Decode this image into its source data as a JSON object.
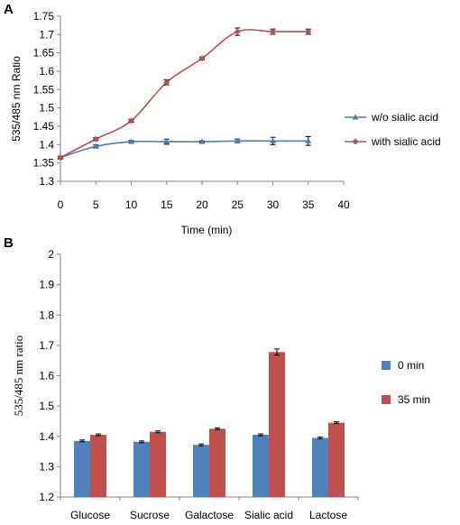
{
  "chart_data": [
    {
      "panel": "A",
      "type": "line",
      "xlabel": "Time  (min)",
      "ylabel": "535/485 nm Ratio",
      "xlim": [
        0,
        40
      ],
      "ylim": [
        1.3,
        1.75
      ],
      "xticks": [
        "0",
        "5",
        "10",
        "15",
        "20",
        "25",
        "30",
        "35",
        "40"
      ],
      "yticks": [
        "1.3",
        "1.35",
        "1.4",
        "1.45",
        "1.5",
        "1.55",
        "1.6",
        "1.65",
        "1.7",
        "1.75"
      ],
      "grid": false,
      "legend_position": "right",
      "x": [
        0,
        5,
        10,
        15,
        20,
        25,
        30,
        35
      ],
      "series": [
        {
          "name": "w/o sialic acid",
          "color": "#4a7ebb",
          "marker": "triangle",
          "values": [
            1.365,
            1.395,
            1.408,
            1.408,
            1.408,
            1.41,
            1.41,
            1.41
          ],
          "errors": [
            0.003,
            0.004,
            0.003,
            0.007,
            0.002,
            0.005,
            0.01,
            0.012
          ]
        },
        {
          "name": "with sialic acid",
          "color": "#c0504d",
          "marker": "diamond",
          "values": [
            1.365,
            1.415,
            1.465,
            1.57,
            1.635,
            1.708,
            1.708,
            1.708
          ],
          "errors": [
            0.003,
            0.004,
            0.004,
            0.007,
            0.004,
            0.01,
            0.007,
            0.007
          ]
        }
      ]
    },
    {
      "panel": "B",
      "type": "bar",
      "ylabel": "535/485 nm ratio",
      "ylim": [
        1.2,
        2.0
      ],
      "yticks": [
        "1.2",
        "1.3",
        "1.4",
        "1.5",
        "1.6",
        "1.7",
        "1.8",
        "1.9",
        "2"
      ],
      "grid": false,
      "legend_position": "right",
      "categories": [
        "Glucose",
        "Sucrose",
        "Galactose",
        "Sialic acid",
        "Lactose"
      ],
      "series": [
        {
          "name": "0 min",
          "color": "#4f81bd",
          "values": [
            1.385,
            1.382,
            1.372,
            1.405,
            1.395
          ],
          "errors": [
            0.003,
            0.003,
            0.003,
            0.003,
            0.003
          ]
        },
        {
          "name": "35 min",
          "color": "#c0504d",
          "values": [
            1.405,
            1.415,
            1.425,
            1.678,
            1.445
          ],
          "errors": [
            0.003,
            0.003,
            0.003,
            0.01,
            0.003
          ]
        }
      ]
    }
  ]
}
